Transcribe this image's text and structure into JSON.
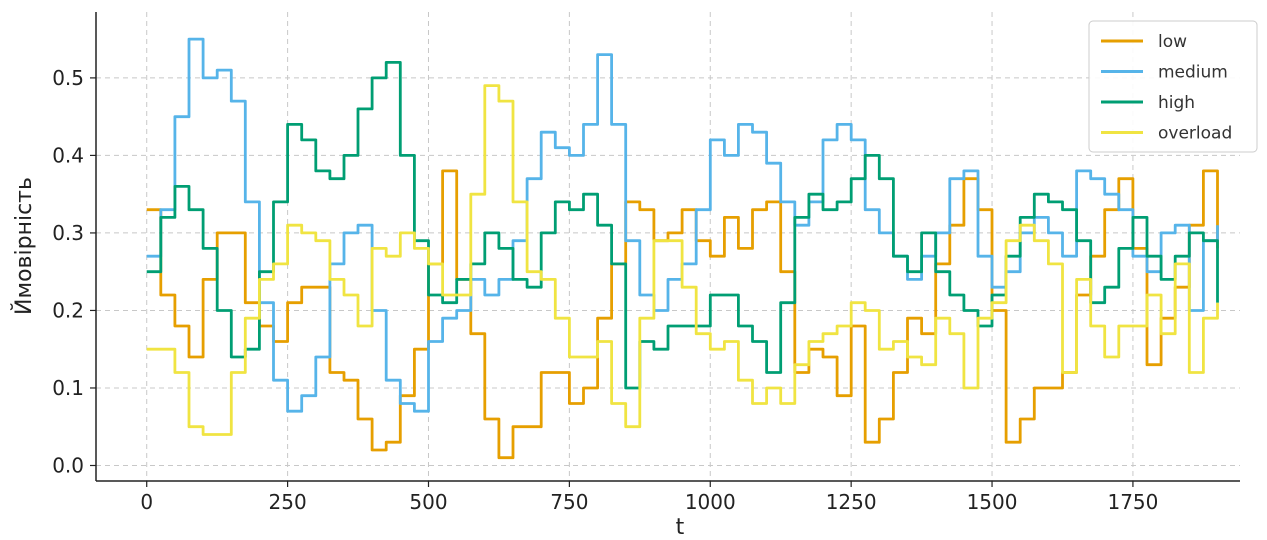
{
  "chart_data": {
    "type": "line",
    "title": "",
    "xlabel": "t",
    "ylabel": "Ймовірність",
    "xlim": [
      -90,
      1940
    ],
    "ylim": [
      -0.02,
      0.585
    ],
    "xticks": [
      0,
      250,
      500,
      750,
      1000,
      1250,
      1500,
      1750
    ],
    "yticks": [
      0.0,
      0.1,
      0.2,
      0.3,
      0.4,
      0.5
    ],
    "x": [
      0,
      25,
      50,
      75,
      100,
      125,
      150,
      175,
      200,
      225,
      250,
      275,
      300,
      325,
      350,
      375,
      400,
      425,
      450,
      475,
      500,
      525,
      550,
      575,
      600,
      625,
      650,
      675,
      700,
      725,
      750,
      775,
      800,
      825,
      850,
      875,
      900,
      925,
      950,
      975,
      1000,
      1025,
      1050,
      1075,
      1100,
      1125,
      1150,
      1175,
      1200,
      1225,
      1250,
      1275,
      1300,
      1325,
      1350,
      1375,
      1400,
      1425,
      1450,
      1475,
      1500,
      1525,
      1550,
      1575,
      1600,
      1625,
      1650,
      1675,
      1700,
      1725,
      1750,
      1775,
      1800,
      1825,
      1850,
      1875,
      1900
    ],
    "grid": true,
    "legend_position": "top-right",
    "series": [
      {
        "name": "low",
        "color": "#E69F00",
        "values": [
          0.33,
          0.22,
          0.18,
          0.14,
          0.24,
          0.3,
          0.3,
          0.21,
          0.18,
          0.16,
          0.21,
          0.23,
          0.23,
          0.12,
          0.11,
          0.06,
          0.02,
          0.03,
          0.09,
          0.15,
          0.26,
          0.38,
          0.24,
          0.17,
          0.06,
          0.01,
          0.05,
          0.05,
          0.12,
          0.12,
          0.08,
          0.1,
          0.19,
          0.26,
          0.34,
          0.33,
          0.29,
          0.3,
          0.33,
          0.29,
          0.27,
          0.32,
          0.28,
          0.33,
          0.34,
          0.25,
          0.12,
          0.15,
          0.14,
          0.09,
          0.18,
          0.03,
          0.06,
          0.12,
          0.19,
          0.17,
          0.26,
          0.31,
          0.37,
          0.33,
          0.2,
          0.03,
          0.06,
          0.1,
          0.1,
          0.12,
          0.22,
          0.27,
          0.33,
          0.37,
          0.28,
          0.13,
          0.19,
          0.23,
          0.31,
          0.38,
          0.28
        ]
      },
      {
        "name": "medium",
        "color": "#56B4E9",
        "values": [
          0.27,
          0.33,
          0.45,
          0.55,
          0.5,
          0.51,
          0.47,
          0.34,
          0.21,
          0.11,
          0.07,
          0.09,
          0.14,
          0.26,
          0.3,
          0.31,
          0.2,
          0.11,
          0.08,
          0.07,
          0.16,
          0.19,
          0.2,
          0.24,
          0.22,
          0.24,
          0.29,
          0.37,
          0.43,
          0.41,
          0.4,
          0.44,
          0.53,
          0.44,
          0.29,
          0.22,
          0.2,
          0.24,
          0.26,
          0.33,
          0.42,
          0.4,
          0.44,
          0.43,
          0.39,
          0.34,
          0.31,
          0.34,
          0.42,
          0.44,
          0.42,
          0.33,
          0.3,
          0.27,
          0.24,
          0.27,
          0.3,
          0.37,
          0.38,
          0.27,
          0.23,
          0.25,
          0.3,
          0.32,
          0.3,
          0.27,
          0.38,
          0.37,
          0.35,
          0.33,
          0.27,
          0.25,
          0.3,
          0.31,
          0.2,
          0.29,
          0.31
        ]
      },
      {
        "name": "high",
        "color": "#009E73",
        "values": [
          0.25,
          0.32,
          0.36,
          0.33,
          0.28,
          0.2,
          0.14,
          0.15,
          0.25,
          0.34,
          0.44,
          0.42,
          0.38,
          0.37,
          0.4,
          0.46,
          0.5,
          0.52,
          0.4,
          0.29,
          0.22,
          0.21,
          0.24,
          0.26,
          0.3,
          0.28,
          0.24,
          0.23,
          0.3,
          0.34,
          0.33,
          0.35,
          0.31,
          0.26,
          0.1,
          0.16,
          0.15,
          0.18,
          0.18,
          0.18,
          0.22,
          0.22,
          0.18,
          0.16,
          0.12,
          0.21,
          0.32,
          0.35,
          0.33,
          0.34,
          0.37,
          0.4,
          0.37,
          0.27,
          0.25,
          0.3,
          0.25,
          0.22,
          0.2,
          0.18,
          0.22,
          0.27,
          0.32,
          0.35,
          0.34,
          0.33,
          0.29,
          0.21,
          0.23,
          0.28,
          0.32,
          0.27,
          0.24,
          0.27,
          0.3,
          0.29,
          0.21
        ]
      },
      {
        "name": "overload",
        "color": "#F0E442",
        "values": [
          0.15,
          0.15,
          0.12,
          0.05,
          0.04,
          0.04,
          0.12,
          0.19,
          0.24,
          0.26,
          0.31,
          0.3,
          0.29,
          0.24,
          0.22,
          0.18,
          0.28,
          0.27,
          0.3,
          0.28,
          0.26,
          0.22,
          0.22,
          0.35,
          0.49,
          0.47,
          0.34,
          0.25,
          0.24,
          0.19,
          0.14,
          0.14,
          0.16,
          0.08,
          0.05,
          0.19,
          0.29,
          0.29,
          0.23,
          0.17,
          0.15,
          0.16,
          0.11,
          0.08,
          0.1,
          0.08,
          0.13,
          0.16,
          0.17,
          0.18,
          0.21,
          0.2,
          0.15,
          0.16,
          0.14,
          0.13,
          0.19,
          0.17,
          0.1,
          0.19,
          0.21,
          0.29,
          0.31,
          0.29,
          0.26,
          0.12,
          0.24,
          0.18,
          0.14,
          0.18,
          0.18,
          0.22,
          0.17,
          0.26,
          0.12,
          0.19,
          0.21
        ]
      }
    ]
  }
}
